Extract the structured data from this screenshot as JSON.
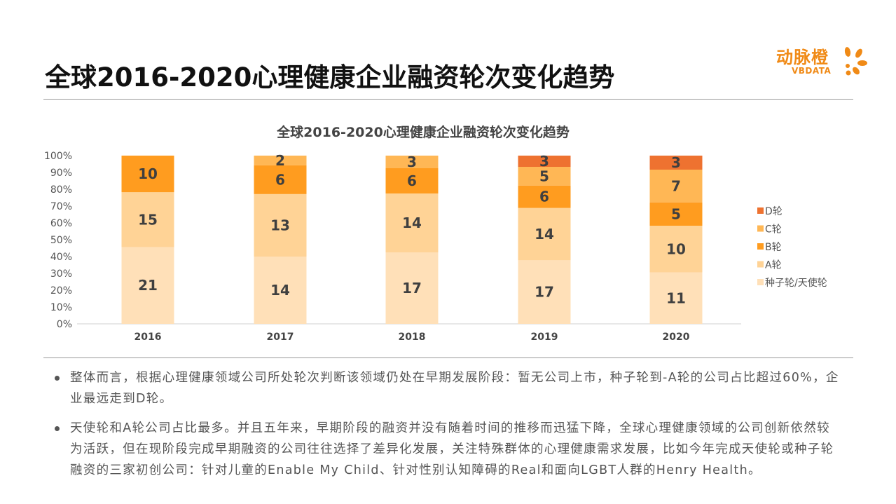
{
  "slide": {
    "title": "全球2016-2020心理健康企业融资轮次变化趋势",
    "logo": {
      "text_cn": "动脉橙",
      "text_en": "VBDATA",
      "color": "#F08A16"
    },
    "bullets": [
      "整体而言，根据心理健康领域公司所处轮次判断该领域仍处在早期发展阶段：暂无公司上市，种子轮到-A轮的公司占比超过60%，企业最远走到D轮。",
      "天使轮和A轮公司占比最多。并且五年来，早期阶段的融资并没有随着时间的推移而迅猛下降，全球心理健康领域的公司创新依然较为活跃，但在现阶段完成早期融资的公司往往选择了差异化发展，关注特殊群体的心理健康需求发展，比如今年完成天使轮或种子轮融资的三家初创公司：针对儿童的Enable My Child、针对性别认知障碍的Real和面向LGBT人群的Henry Health。"
    ]
  },
  "chart_data": {
    "type": "bar",
    "stacked": "percent",
    "title": "全球2016-2020心理健康企业融资轮次变化趋势",
    "categories": [
      "2016",
      "2017",
      "2018",
      "2019",
      "2020"
    ],
    "yticks": [
      "0%",
      "10%",
      "20%",
      "30%",
      "40%",
      "50%",
      "60%",
      "70%",
      "80%",
      "90%",
      "100%"
    ],
    "ylim": [
      0,
      100
    ],
    "grid": false,
    "legend": "right",
    "series": [
      {
        "name": "种子轮/天使轮",
        "color": "#FFE0B8",
        "values": [
          21,
          14,
          17,
          17,
          11
        ]
      },
      {
        "name": "A轮",
        "color": "#FFD396",
        "values": [
          15,
          13,
          14,
          14,
          10
        ]
      },
      {
        "name": "B轮",
        "color": "#FF9C1F",
        "values": [
          10,
          6,
          6,
          6,
          5
        ]
      },
      {
        "name": "C轮",
        "color": "#FFB755",
        "values": [
          0,
          2,
          3,
          5,
          7
        ]
      },
      {
        "name": "D轮",
        "color": "#EE7230",
        "values": [
          0,
          0,
          0,
          3,
          3
        ]
      }
    ]
  }
}
